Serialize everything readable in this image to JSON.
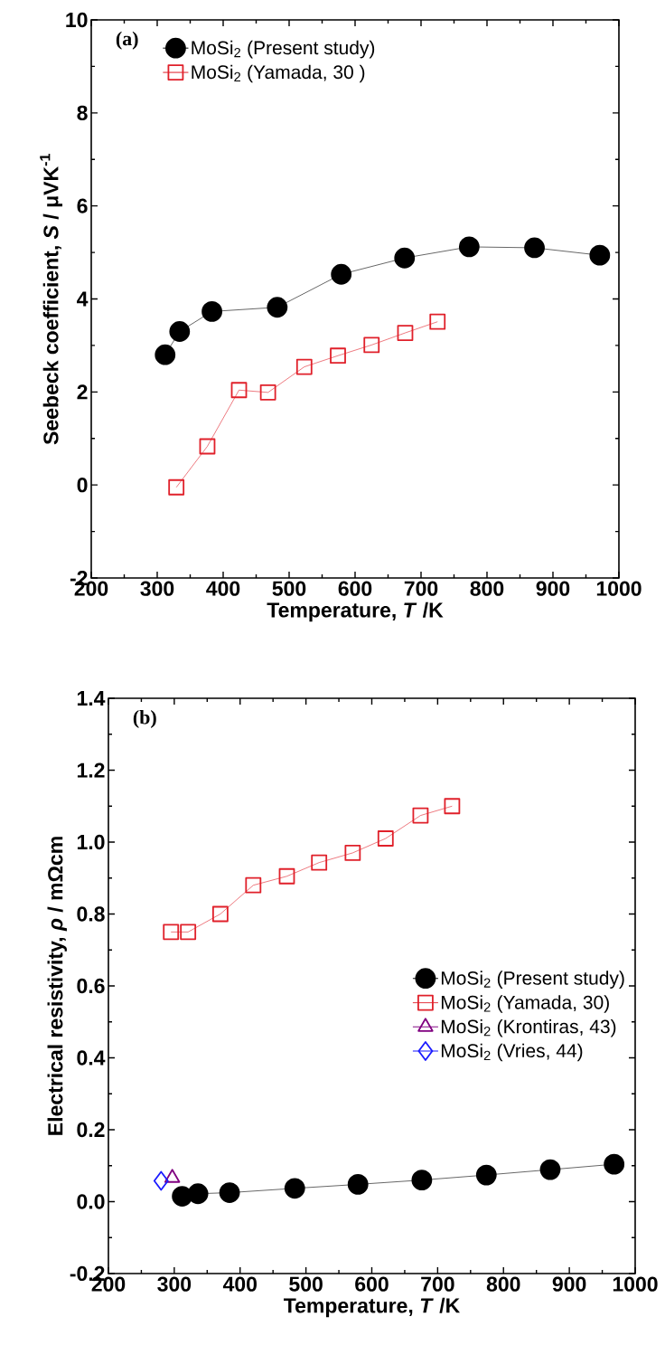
{
  "chart_data": [
    {
      "type": "line",
      "xlabel": "Temperature, *T* /K",
      "ylabel": "Seebeck coefficient, *S* / μVK$^{-1}$",
      "annotations": [
        "(a)"
      ],
      "xlim": [
        200,
        1000
      ],
      "ylim": [
        -2,
        10
      ],
      "xticks": [
        200,
        300,
        400,
        500,
        600,
        700,
        800,
        900,
        1000
      ],
      "yticks": [
        -2,
        0,
        2,
        4,
        6,
        8,
        10
      ],
      "legend": "top left",
      "line_style": "solid",
      "grid": false,
      "series": [
        {
          "name": "MoSi$_{2}$ (Present study)",
          "color": "#000000",
          "marker": "circle",
          "x": [
            312,
            334,
            383,
            482,
            579,
            675,
            773,
            872,
            971
          ],
          "values": [
            2.8,
            3.3,
            3.73,
            3.82,
            4.53,
            4.88,
            5.12,
            5.1,
            4.94
          ]
        },
        {
          "name": "MoSi$_{2}$ (Yamada, 30 )",
          "color": "#e0202a",
          "marker": "square",
          "x": [
            329,
            376,
            424,
            468,
            523,
            574,
            625,
            676,
            725
          ],
          "values": [
            -0.05,
            0.83,
            2.04,
            1.99,
            2.54,
            2.78,
            3.01,
            3.27,
            3.51
          ]
        }
      ]
    },
    {
      "type": "line",
      "xlabel": "Temperature, *T* /K",
      "ylabel": "Electrical resistivity, *ρ* / mΩcm",
      "annotations": [
        "(b)"
      ],
      "xlim": [
        200,
        1000
      ],
      "ylim": [
        -0.2,
        1.4
      ],
      "xticks": [
        200,
        300,
        400,
        500,
        600,
        700,
        800,
        900,
        1000
      ],
      "yticks": [
        -0.2,
        {
          "value": 0,
          "label": "0.0"
        },
        0.2,
        0.4,
        0.6,
        0.8,
        {
          "value": 1,
          "label": "1.0"
        },
        1.2,
        1.4
      ],
      "legend": "right",
      "line_style": "solid",
      "grid": false,
      "series": [
        {
          "name": "MoSi$_{2}$ (Present study)",
          "color": "#000000",
          "marker": "circle",
          "x": [
            312,
            336,
            384,
            483,
            579,
            676,
            774,
            871,
            968
          ],
          "values": [
            0.015,
            0.022,
            0.025,
            0.037,
            0.048,
            0.06,
            0.074,
            0.089,
            0.104
          ]
        },
        {
          "name": "MoSi$_{2}$ (Yamada, 30)",
          "color": "#e0202a",
          "marker": "square",
          "x": [
            295,
            321,
            370,
            420,
            471,
            520,
            571,
            621,
            674,
            722
          ],
          "values": [
            0.75,
            0.75,
            0.8,
            0.88,
            0.905,
            0.943,
            0.97,
            1.01,
            1.074,
            1.1
          ]
        },
        {
          "name": "MoSi$_{2}$ (Krontiras, 43)",
          "color": "#800080",
          "marker": "triangle",
          "x": [
            297
          ],
          "values": [
            0.066
          ]
        },
        {
          "name": "MoSi$_{2}$ (Vries, 44)",
          "color": "#1a1aff",
          "marker": "diamond",
          "x": [
            280
          ],
          "values": [
            0.058
          ]
        }
      ]
    }
  ]
}
